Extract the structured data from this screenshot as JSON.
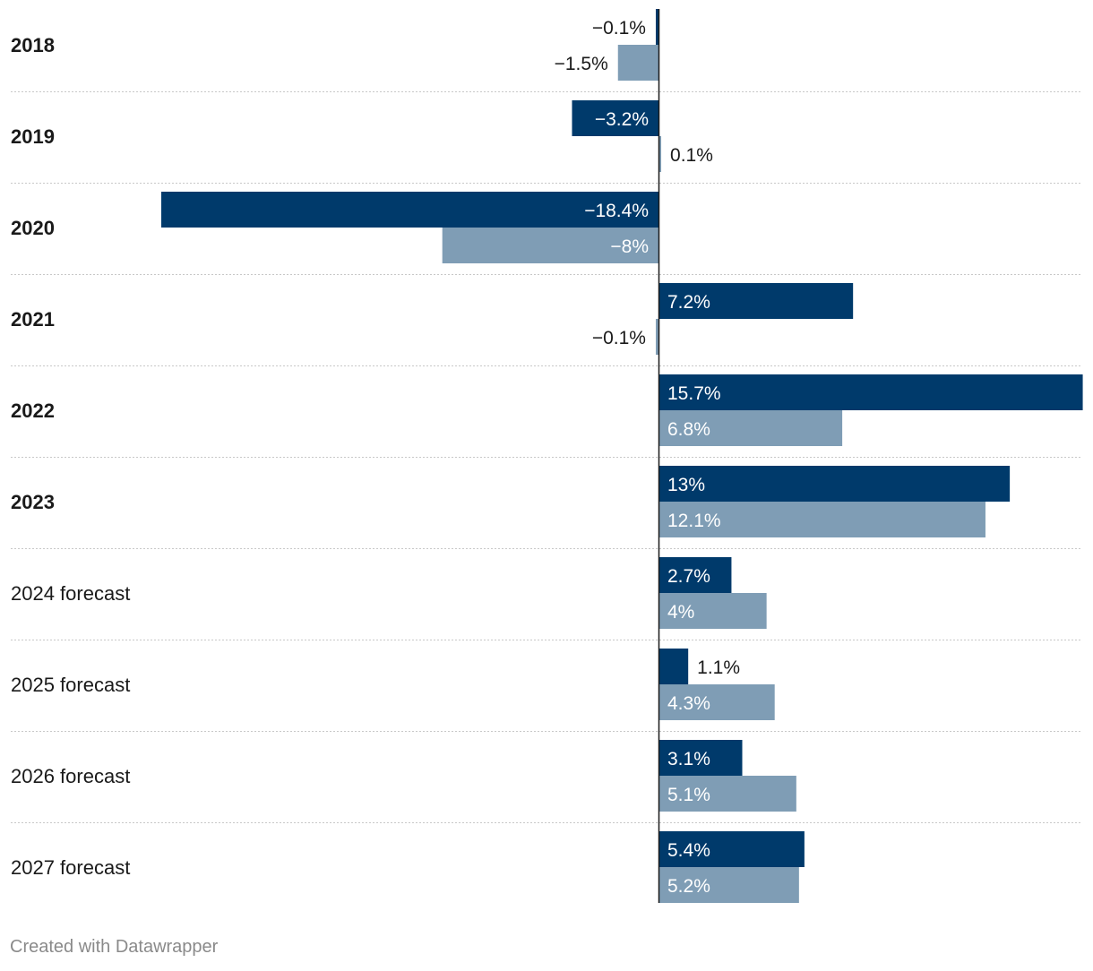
{
  "chart_data": {
    "type": "bar",
    "orientation": "horizontal",
    "categories": [
      "2018",
      "2019",
      "2020",
      "2021",
      "2022",
      "2023",
      "2024 forecast",
      "2025 forecast",
      "2026 forecast",
      "2027 forecast"
    ],
    "category_bold": [
      true,
      true,
      true,
      true,
      true,
      true,
      false,
      false,
      false,
      false
    ],
    "series": [
      {
        "name": "Series 1",
        "color": "#003a6b",
        "values": [
          -0.1,
          -3.2,
          -18.4,
          7.2,
          15.7,
          13,
          2.7,
          1.1,
          3.1,
          5.4
        ],
        "labels": [
          "−0.1%",
          "−3.2%",
          "−18.4%",
          "7.2%",
          "15.7%",
          "13%",
          "2.7%",
          "1.1%",
          "3.1%",
          "5.4%"
        ]
      },
      {
        "name": "Series 2",
        "color": "#7f9db5",
        "values": [
          -1.5,
          0.1,
          -8,
          -0.1,
          6.8,
          12.1,
          4,
          4.3,
          5.1,
          5.2
        ],
        "labels": [
          "−1.5%",
          "0.1%",
          "−8%",
          "−0.1%",
          "6.8%",
          "12.1%",
          "4%",
          "4.3%",
          "5.1%",
          "5.2%"
        ]
      }
    ],
    "xlim": [
      -18.4,
      15.7
    ]
  },
  "credit": "Created with Datawrapper"
}
